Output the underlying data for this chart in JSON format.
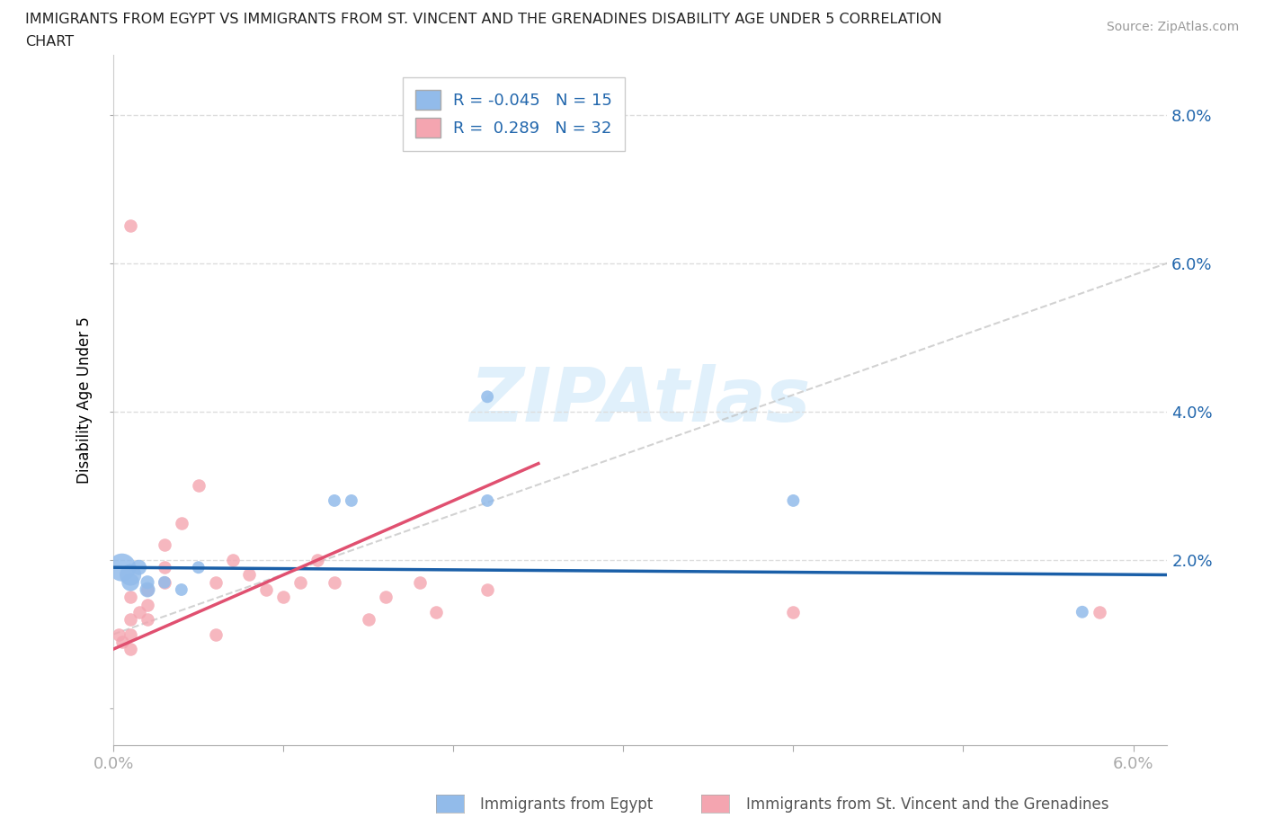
{
  "title_line1": "IMMIGRANTS FROM EGYPT VS IMMIGRANTS FROM ST. VINCENT AND THE GRENADINES DISABILITY AGE UNDER 5 CORRELATION",
  "title_line2": "CHART",
  "source": "Source: ZipAtlas.com",
  "ylabel": "Disability Age Under 5",
  "R_egypt": -0.045,
  "N_egypt": 15,
  "R_svg": 0.289,
  "N_svg": 32,
  "egypt_color": "#92BBEA",
  "svg_color": "#F4A5B0",
  "egypt_line_color": "#1a5fa8",
  "svg_line_color": "#e05070",
  "dashed_line_color": "#cccccc",
  "watermark": "ZIPAtlas",
  "egypt_x": [
    0.0005,
    0.001,
    0.001,
    0.0015,
    0.002,
    0.002,
    0.003,
    0.004,
    0.005,
    0.013,
    0.014,
    0.022,
    0.022,
    0.04,
    0.057
  ],
  "egypt_y": [
    0.019,
    0.018,
    0.017,
    0.019,
    0.016,
    0.017,
    0.017,
    0.016,
    0.019,
    0.028,
    0.028,
    0.042,
    0.028,
    0.028,
    0.013
  ],
  "egypt_size": [
    500,
    300,
    200,
    150,
    150,
    120,
    100,
    100,
    100,
    100,
    100,
    100,
    100,
    100,
    100
  ],
  "svg_x": [
    0.0003,
    0.0005,
    0.001,
    0.001,
    0.001,
    0.001,
    0.001,
    0.0015,
    0.002,
    0.002,
    0.002,
    0.003,
    0.003,
    0.003,
    0.004,
    0.005,
    0.006,
    0.006,
    0.007,
    0.008,
    0.009,
    0.01,
    0.011,
    0.012,
    0.013,
    0.015,
    0.016,
    0.018,
    0.019,
    0.022,
    0.04,
    0.058
  ],
  "svg_y": [
    0.01,
    0.009,
    0.008,
    0.01,
    0.012,
    0.015,
    0.065,
    0.013,
    0.012,
    0.014,
    0.016,
    0.017,
    0.019,
    0.022,
    0.025,
    0.03,
    0.01,
    0.017,
    0.02,
    0.018,
    0.016,
    0.015,
    0.017,
    0.02,
    0.017,
    0.012,
    0.015,
    0.017,
    0.013,
    0.016,
    0.013,
    0.013
  ],
  "svg_size": [
    100,
    100,
    100,
    100,
    100,
    100,
    100,
    100,
    100,
    100,
    100,
    100,
    100,
    100,
    100,
    100,
    100,
    100,
    100,
    100,
    100,
    100,
    100,
    100,
    100,
    100,
    100,
    100,
    100,
    100,
    100,
    100
  ],
  "xlim": [
    0.0,
    0.062
  ],
  "ylim": [
    -0.005,
    0.088
  ],
  "ytick_vals": [
    0.0,
    0.02,
    0.04,
    0.06,
    0.08
  ],
  "ytick_labels": [
    "",
    "2.0%",
    "4.0%",
    "6.0%",
    "8.0%"
  ],
  "xtick_vals": [
    0.0,
    0.01,
    0.02,
    0.03,
    0.04,
    0.05,
    0.06
  ],
  "xtick_labels": [
    "0.0%",
    "",
    "",
    "",
    "",
    "",
    "6.0%"
  ],
  "egypt_trend": [
    0.019,
    0.018
  ],
  "svg_trend_x": [
    0.0,
    0.025
  ],
  "svg_trend_y": [
    0.008,
    0.033
  ],
  "dash_trend_x": [
    0.015,
    0.062
  ],
  "dash_trend_y": [
    0.028,
    0.06
  ]
}
